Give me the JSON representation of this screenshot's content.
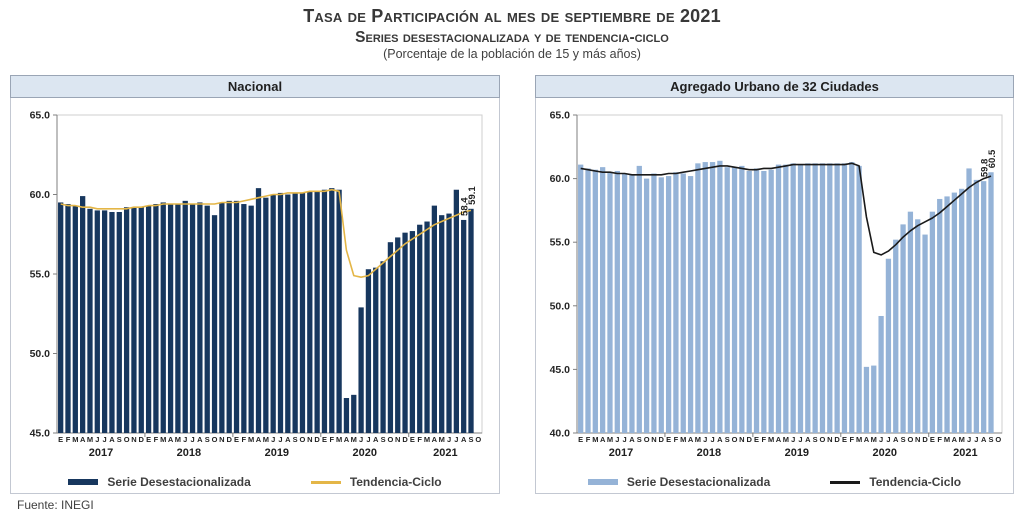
{
  "page": {
    "title_line1": "Tasa de Participación al mes de septiembre de 2021",
    "title_line2": "Series desestacionalizada y de tendencia-ciclo",
    "title_line3": "(Porcentaje de la población de 15 y más años)",
    "source": "Fuente: INEGI"
  },
  "chart_data": [
    {
      "type": "bar",
      "title": "Nacional",
      "ylim": [
        45,
        65
      ],
      "yticks": [
        "65.0",
        "60.0",
        "55.0",
        "50.0",
        "45.0"
      ],
      "years": [
        {
          "label": "2017",
          "months": "EFMAMJJASOND"
        },
        {
          "label": "2018",
          "months": "EFMAMJJASOND"
        },
        {
          "label": "2019",
          "months": "EFMAMJJASOND"
        },
        {
          "label": "2020",
          "months": "EFMAMJJASOND"
        },
        {
          "label": "2021",
          "months": "EFMAMJJASO"
        }
      ],
      "bar_color": "#17375E",
      "line_color": "#E4B647",
      "series": [
        {
          "name": "Serie Desestacionalizada",
          "type": "bar",
          "values": [
            59.5,
            59.4,
            59.3,
            59.9,
            59.1,
            59.0,
            59.0,
            58.9,
            58.9,
            59.2,
            59.2,
            59.2,
            59.3,
            59.4,
            59.5,
            59.4,
            59.4,
            59.6,
            59.4,
            59.5,
            59.3,
            58.7,
            59.5,
            59.6,
            59.6,
            59.4,
            59.3,
            60.4,
            59.8,
            60.0,
            60.1,
            60.0,
            60.1,
            60.1,
            60.2,
            60.2,
            60.3,
            60.4,
            60.3,
            47.2,
            47.4,
            52.9,
            55.3,
            55.4,
            55.8,
            57.0,
            57.3,
            57.6,
            57.7,
            58.1,
            58.3,
            59.3,
            58.7,
            58.8,
            60.3,
            58.4,
            59.1
          ]
        },
        {
          "name": "Tendencia-Ciclo",
          "type": "line",
          "values": [
            59.4,
            59.3,
            59.3,
            59.2,
            59.2,
            59.1,
            59.1,
            59.1,
            59.1,
            59.1,
            59.2,
            59.2,
            59.3,
            59.3,
            59.4,
            59.4,
            59.4,
            59.4,
            59.4,
            59.4,
            59.4,
            59.4,
            59.5,
            59.5,
            59.5,
            59.6,
            59.7,
            59.8,
            59.9,
            60.0,
            60.0,
            60.1,
            60.1,
            60.1,
            60.2,
            60.2,
            60.2,
            60.3,
            60.2,
            56.5,
            54.9,
            54.8,
            54.9,
            55.3,
            55.7,
            56.1,
            56.5,
            56.9,
            57.2,
            57.5,
            57.8,
            58.1,
            58.3,
            58.5,
            58.7,
            58.9,
            59.0
          ]
        }
      ],
      "point_labels": [
        {
          "index": 55,
          "text": "58.4"
        },
        {
          "index": 56,
          "text": "59.1"
        }
      ]
    },
    {
      "type": "bar",
      "title": "Agregado Urbano de 32 Ciudades",
      "ylim": [
        40,
        65
      ],
      "yticks": [
        "65.0",
        "60.0",
        "55.0",
        "50.0",
        "45.0",
        "40.0"
      ],
      "years": [
        {
          "label": "2017",
          "months": "EFMAMJJASOND"
        },
        {
          "label": "2018",
          "months": "EFMAMJJASOND"
        },
        {
          "label": "2019",
          "months": "EFMAMJJASOND"
        },
        {
          "label": "2020",
          "months": "EFMAMJJASOND"
        },
        {
          "label": "2021",
          "months": "EFMAMJJASO"
        }
      ],
      "bar_color": "#95B3D7",
      "line_color": "#1A1A1A",
      "series": [
        {
          "name": "Serie Desestacionalizada",
          "type": "bar",
          "values": [
            61.1,
            60.8,
            60.7,
            60.9,
            60.5,
            60.6,
            60.4,
            60.3,
            61.0,
            60.0,
            60.4,
            60.1,
            60.2,
            60.5,
            60.4,
            60.2,
            61.2,
            61.3,
            61.3,
            61.4,
            60.9,
            60.9,
            61.0,
            60.6,
            60.8,
            60.6,
            60.7,
            61.1,
            61.1,
            61.2,
            61.1,
            61.2,
            61.2,
            61.2,
            61.2,
            61.2,
            61.2,
            61.3,
            61.0,
            45.2,
            45.3,
            49.2,
            53.7,
            55.2,
            56.4,
            57.4,
            56.8,
            55.6,
            57.4,
            58.4,
            58.6,
            58.9,
            59.2,
            60.8,
            59.9,
            59.8,
            60.5
          ]
        },
        {
          "name": "Tendencia-Ciclo",
          "type": "line",
          "values": [
            60.8,
            60.7,
            60.6,
            60.5,
            60.5,
            60.4,
            60.4,
            60.3,
            60.3,
            60.3,
            60.3,
            60.3,
            60.4,
            60.4,
            60.5,
            60.6,
            60.7,
            60.8,
            60.9,
            61.0,
            61.0,
            60.9,
            60.8,
            60.7,
            60.7,
            60.8,
            60.8,
            60.9,
            61.0,
            61.1,
            61.1,
            61.1,
            61.1,
            61.1,
            61.1,
            61.1,
            61.1,
            61.2,
            61.0,
            57.0,
            54.2,
            54.0,
            54.3,
            54.8,
            55.4,
            55.9,
            56.3,
            56.6,
            56.9,
            57.3,
            57.8,
            58.3,
            58.8,
            59.3,
            59.7,
            60.0,
            60.2
          ]
        }
      ],
      "point_labels": [
        {
          "index": 55,
          "text": "59.8"
        },
        {
          "index": 56,
          "text": "60.5"
        }
      ]
    }
  ]
}
